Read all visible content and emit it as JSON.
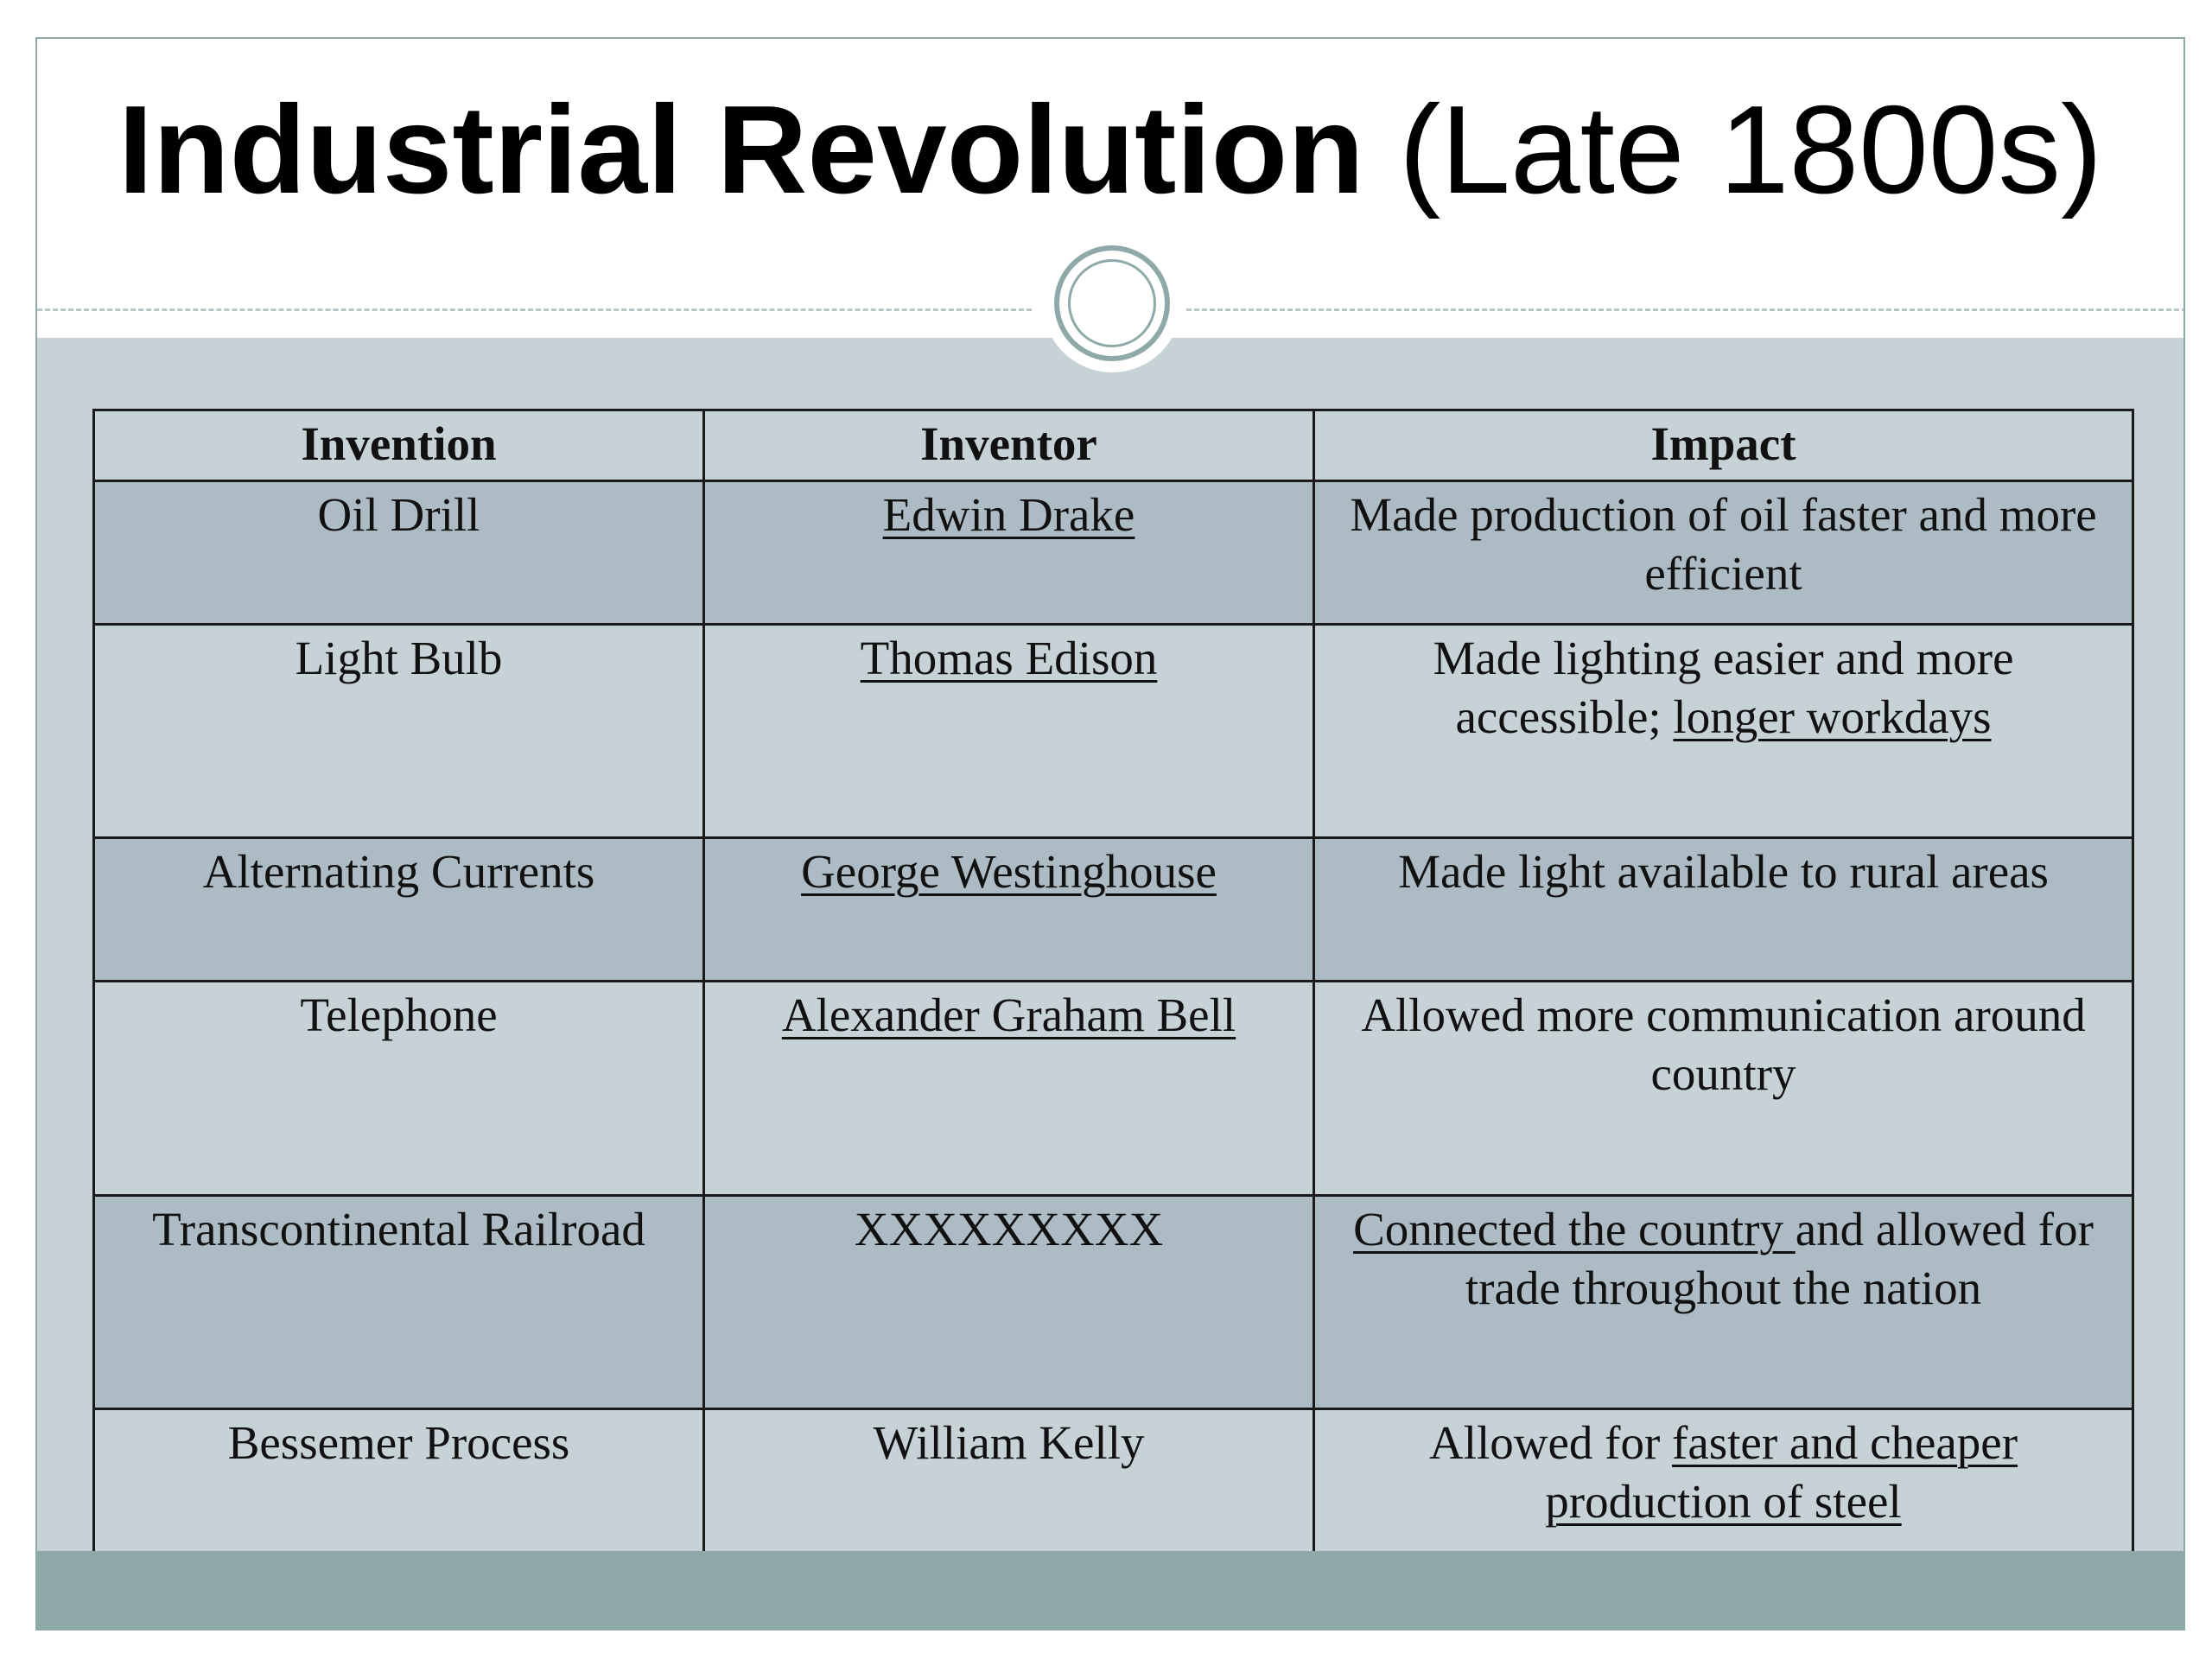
{
  "slide": {
    "title_bold": "Industrial Revolution",
    "title_rest": "(Late 1800s)"
  },
  "table": {
    "headers": [
      "Invention",
      "Inventor",
      "Impact"
    ],
    "rows": [
      {
        "invention": "Oil Drill",
        "inventor": "Edwin Drake",
        "impact": "Made production of oil faster and more efficient"
      },
      {
        "invention": "Light Bulb",
        "inventor": "Thomas Edison",
        "impact_part1": "Made lighting easier and more accessible; ",
        "impact_part2": "longer workdays"
      },
      {
        "invention": "Alternating Currents",
        "inventor": "George Westinghouse",
        "impact": "Made light available to rural areas"
      },
      {
        "invention": "Telephone",
        "inventor": "Alexander Graham Bell",
        "impact": "Allowed more communication around country"
      },
      {
        "invention": "Transcontinental Railroad",
        "inventor": "XXXXXXXXX",
        "impact_part1": "Connected the country ",
        "impact_part2": "and allowed for trade throughout the nation"
      },
      {
        "invention": "Bessemer Process",
        "inventor": "William Kelly",
        "impact_part1": "Allowed for ",
        "impact_part2": "faster and cheaper production of steel"
      }
    ]
  },
  "colors": {
    "accent": "#8fa9a8",
    "slide_bg": "#c7d2d7",
    "row_shade": "#adbcc4"
  }
}
